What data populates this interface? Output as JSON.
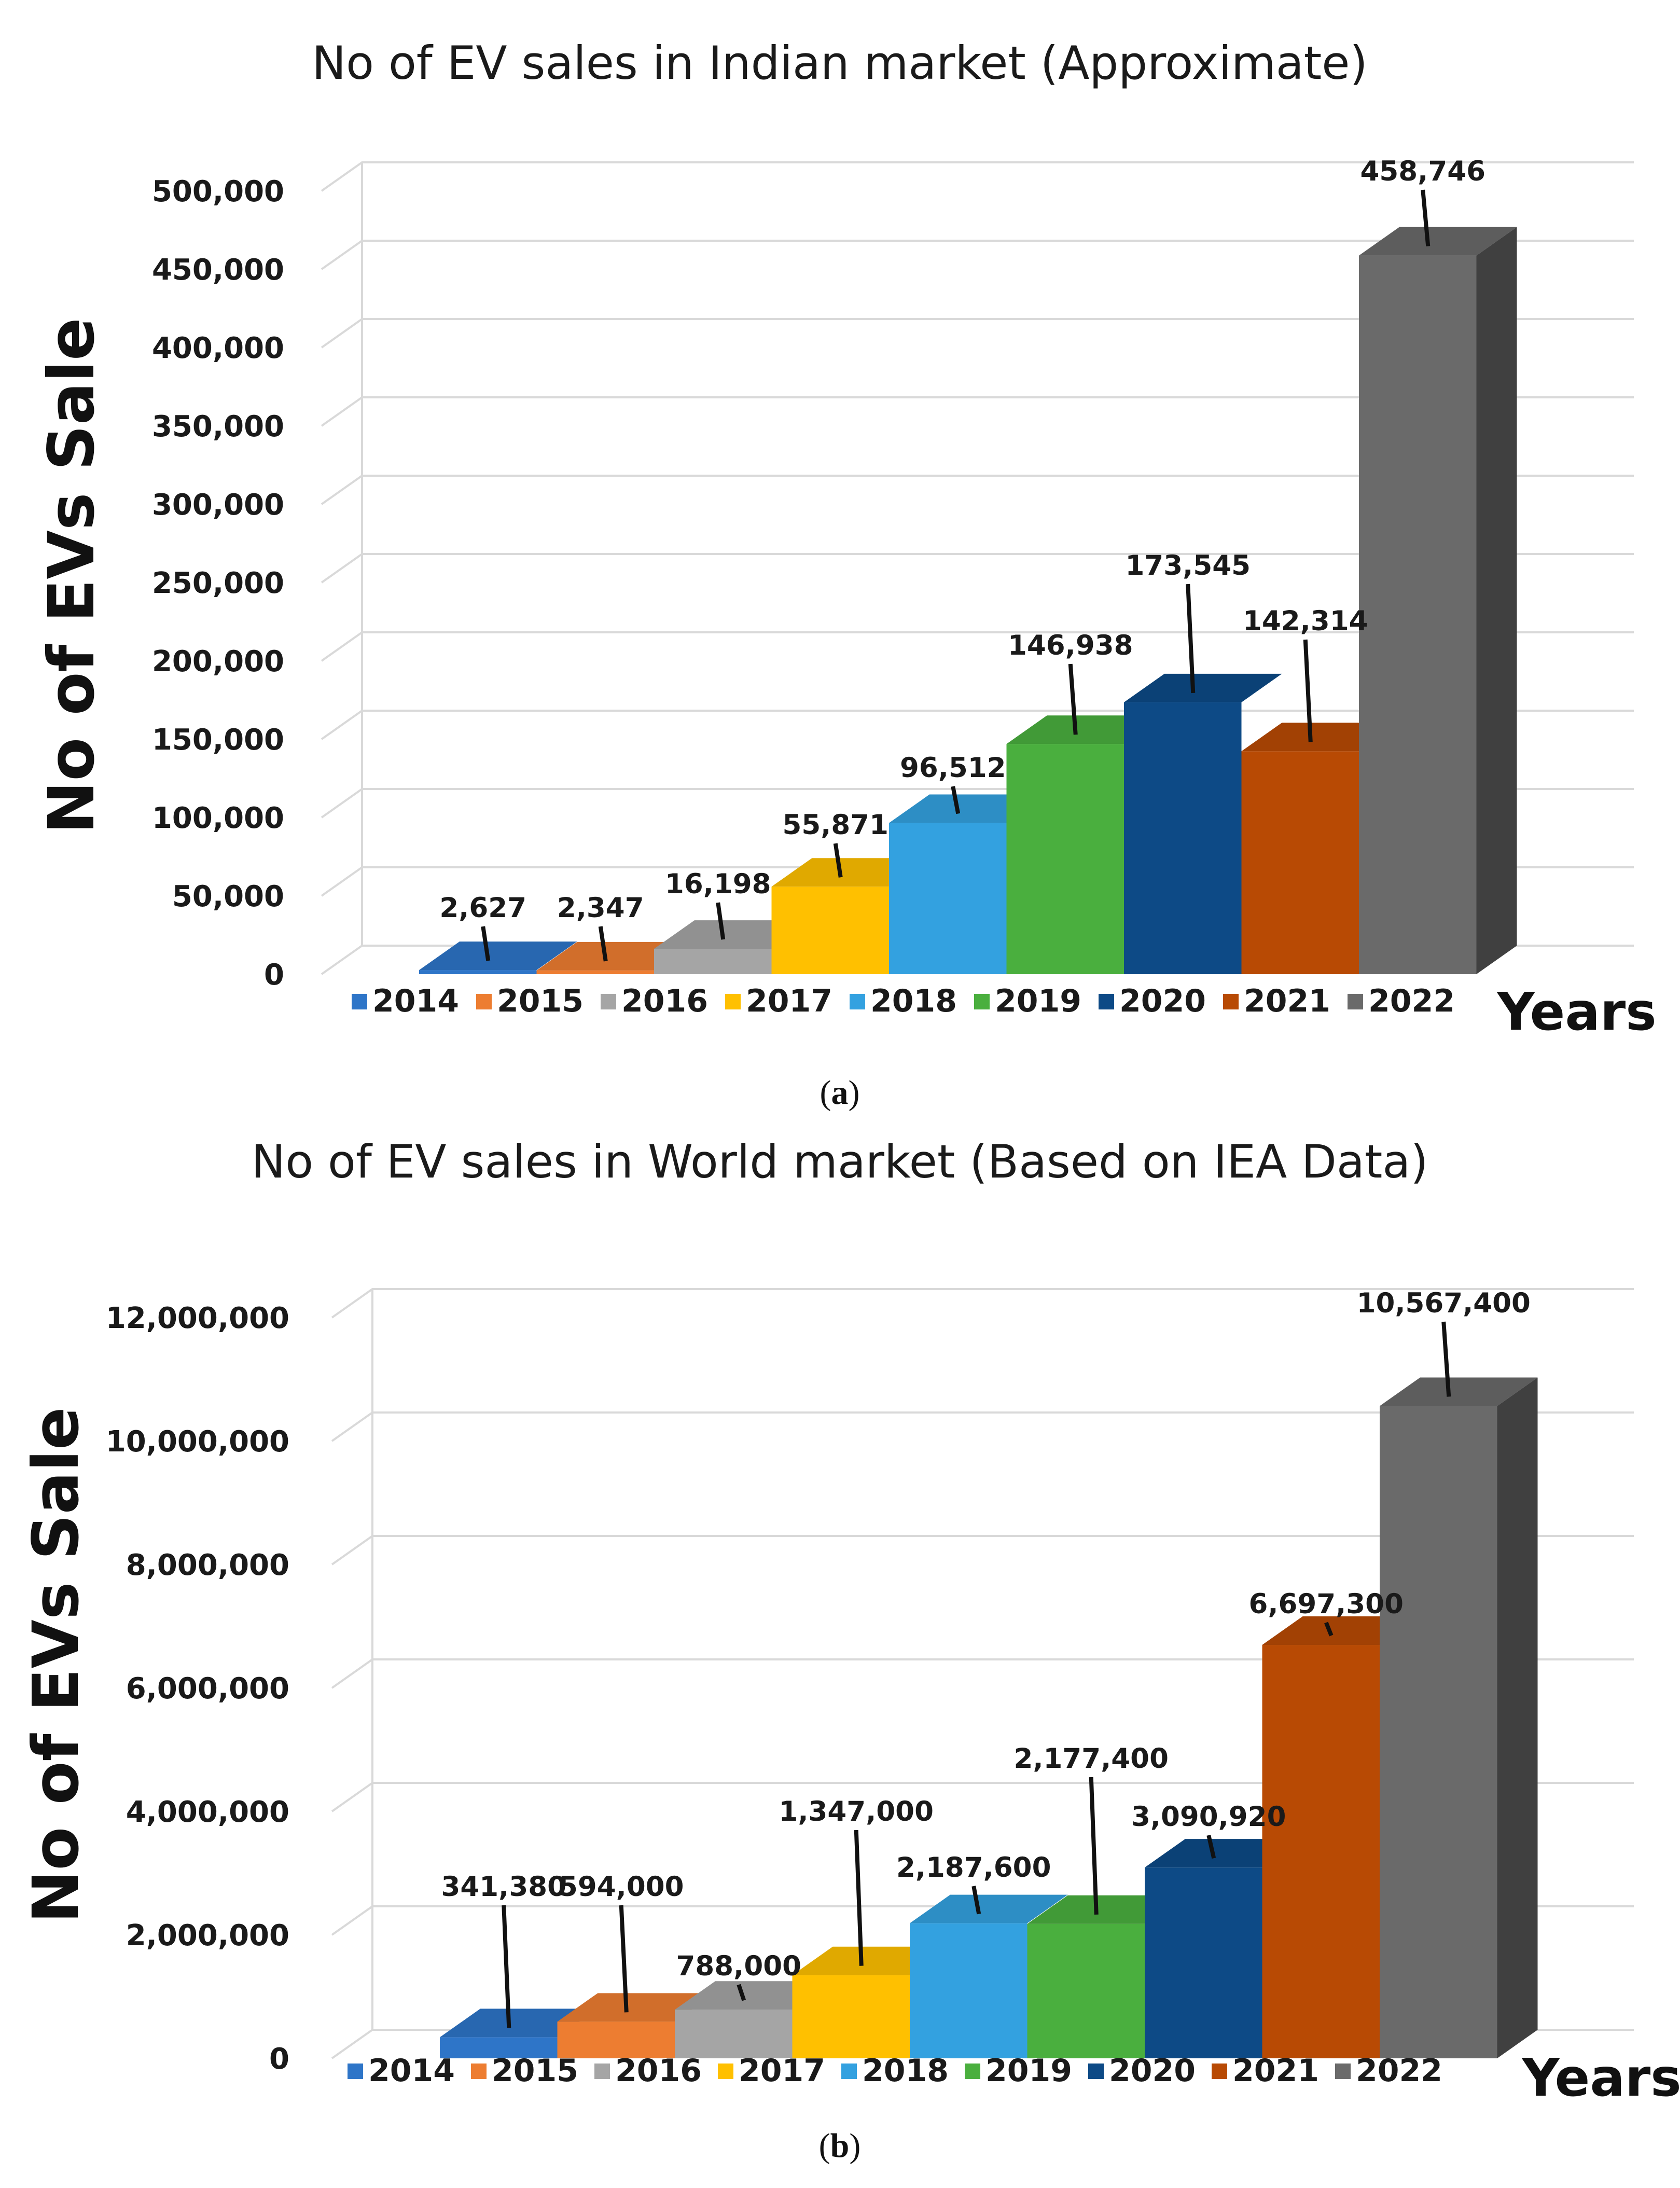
{
  "chart_data": [
    {
      "type": "bar",
      "panel": "a",
      "title": "No of EV sales in Indian market (Approximate)",
      "ylabel": "No of EVs Sale",
      "xlabel": "Years",
      "ylim": [
        0,
        500000
      ],
      "y_ticks": [
        "0",
        "50,000",
        "100,000",
        "150,000",
        "200,000",
        "250,000",
        "300,000",
        "350,000",
        "400,000",
        "450,000",
        "500,000"
      ],
      "categories": [
        "2014",
        "2015",
        "2016",
        "2017",
        "2018",
        "2019",
        "2020",
        "2021",
        "2022"
      ],
      "values": [
        2627,
        2347,
        16198,
        55871,
        96512,
        146938,
        173545,
        142314,
        458746
      ],
      "value_labels": [
        "2,627",
        "2,347",
        "16,198",
        "55,871",
        "96,512",
        "146,938",
        "173,545",
        "142,314",
        "458,746"
      ],
      "legend": [
        "2014",
        "2015",
        "2016",
        "2017",
        "2018",
        "2019",
        "2020",
        "2021",
        "2022"
      ],
      "colors": [
        "#2e75c8",
        "#ed7d31",
        "#a5a5a5",
        "#ffc000",
        "#33a1e0",
        "#4aaf3e",
        "#0d4a86",
        "#b84a04",
        "#6a6a6a"
      ],
      "grid": true,
      "legend_position": "bottom"
    },
    {
      "type": "bar",
      "panel": "b",
      "title": "No of EV sales in World market (Based on IEA Data)",
      "ylabel": "No of EVs Sale",
      "xlabel": "Years",
      "ylim": [
        0,
        12000000
      ],
      "y_ticks": [
        "0",
        "2,000,000",
        "4,000,000",
        "6,000,000",
        "8,000,000",
        "10,000,000",
        "12,000,000"
      ],
      "categories": [
        "2014",
        "2015",
        "2016",
        "2017",
        "2018",
        "2019",
        "2020",
        "2021",
        "2022"
      ],
      "values": [
        341380,
        594000,
        788000,
        1347000,
        2187600,
        2177400,
        3090920,
        6697300,
        10567400
      ],
      "value_labels": [
        "341,380",
        "594,000",
        "788,000",
        "1,347,000",
        "2,187,600",
        "2,177,400",
        "3,090,920",
        "6,697,300",
        "10,567,400"
      ],
      "legend": [
        "2014",
        "2015",
        "2016",
        "2017",
        "2018",
        "2019",
        "2020",
        "2021",
        "2022"
      ],
      "colors": [
        "#2e75c8",
        "#ed7d31",
        "#a5a5a5",
        "#ffc000",
        "#33a1e0",
        "#4aaf3e",
        "#0d4a86",
        "#b84a04",
        "#6a6a6a"
      ],
      "grid": true,
      "legend_position": "bottom"
    }
  ],
  "captions": [
    "(a)",
    "(b)"
  ]
}
